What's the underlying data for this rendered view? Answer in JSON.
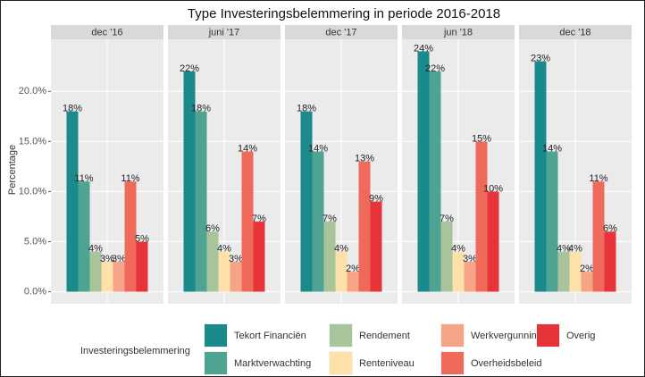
{
  "chart_data": {
    "type": "bar",
    "title": "Type Investeringsbelemmering in periode 2016-2018",
    "ylabel": "Percentage",
    "legend_title": "Investeringsbelemmering",
    "facets": [
      "dec '16",
      "juni '17",
      "dec '17",
      "jun '18",
      "dec '18"
    ],
    "series": [
      {
        "name": "Tekort Financiën",
        "color": "#1b8a8c",
        "values": [
          18,
          22,
          18,
          24,
          23
        ],
        "value_labels": [
          "18%",
          "22%",
          "18%",
          "24%",
          "23%"
        ]
      },
      {
        "name": "Marktverwachting",
        "color": "#4fa392",
        "values": [
          11,
          18,
          14,
          22,
          14
        ],
        "value_labels": [
          "11%",
          "18%",
          "14%",
          "22%",
          "14%"
        ]
      },
      {
        "name": "Rendement",
        "color": "#a8c49b",
        "values": [
          4,
          6,
          7,
          7,
          4
        ],
        "value_labels": [
          "4%",
          "6%",
          "7%",
          "7%",
          "4%"
        ]
      },
      {
        "name": "Renteniveau",
        "color": "#fde1a9",
        "values": [
          3,
          4,
          4,
          4,
          4
        ],
        "value_labels": [
          "3%",
          "4%",
          "4%",
          "4%",
          "4%"
        ]
      },
      {
        "name": "Werkvergunning",
        "color": "#f6a488",
        "values": [
          3,
          3,
          2,
          3,
          2
        ],
        "value_labels": [
          "3%",
          "3%",
          "2%",
          "3%",
          "2%"
        ]
      },
      {
        "name": "Overheidsbeleid",
        "color": "#ef6a5b",
        "values": [
          11,
          14,
          13,
          15,
          11
        ],
        "value_labels": [
          "11%",
          "14%",
          "13%",
          "15%",
          "11%"
        ]
      },
      {
        "name": "Overig",
        "color": "#e6343a",
        "values": [
          5,
          7,
          9,
          10,
          6
        ],
        "value_labels": [
          "5%",
          "7%",
          "9%",
          "10%",
          "6%"
        ]
      }
    ],
    "ylim": [
      -1.2,
      25.2
    ],
    "yticks": [
      {
        "value": 0,
        "label": "0.0%"
      },
      {
        "value": 5,
        "label": "5.0%"
      },
      {
        "value": 10,
        "label": "10.0%"
      },
      {
        "value": 15,
        "label": "15.0%"
      },
      {
        "value": 20,
        "label": "20.0%"
      }
    ],
    "grid": true
  }
}
